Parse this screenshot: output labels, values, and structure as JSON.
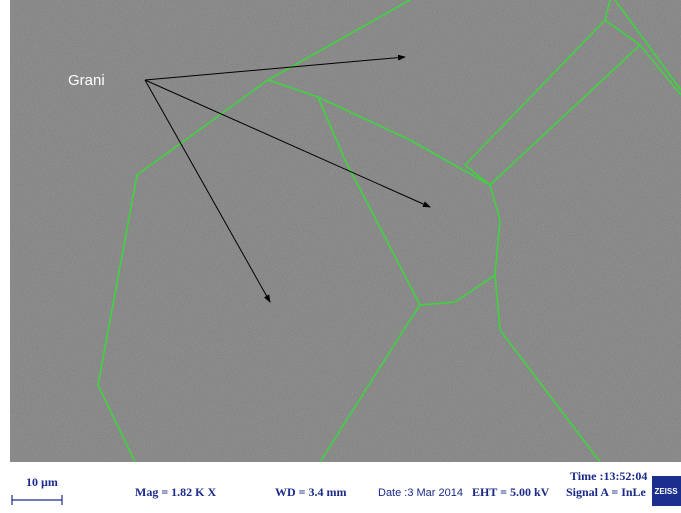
{
  "annotation": "Grani",
  "info_bar": {
    "scale": "10 µm",
    "mag": "Mag = 1.82 K X",
    "wd": "WD = 3.4 mm",
    "date": "Date :3 Mar 2014",
    "eht": "EHT = 5.00 kV",
    "signal": "Signal A = InLe",
    "time": "Time :13:52:04",
    "logo": "ZEISS"
  }
}
